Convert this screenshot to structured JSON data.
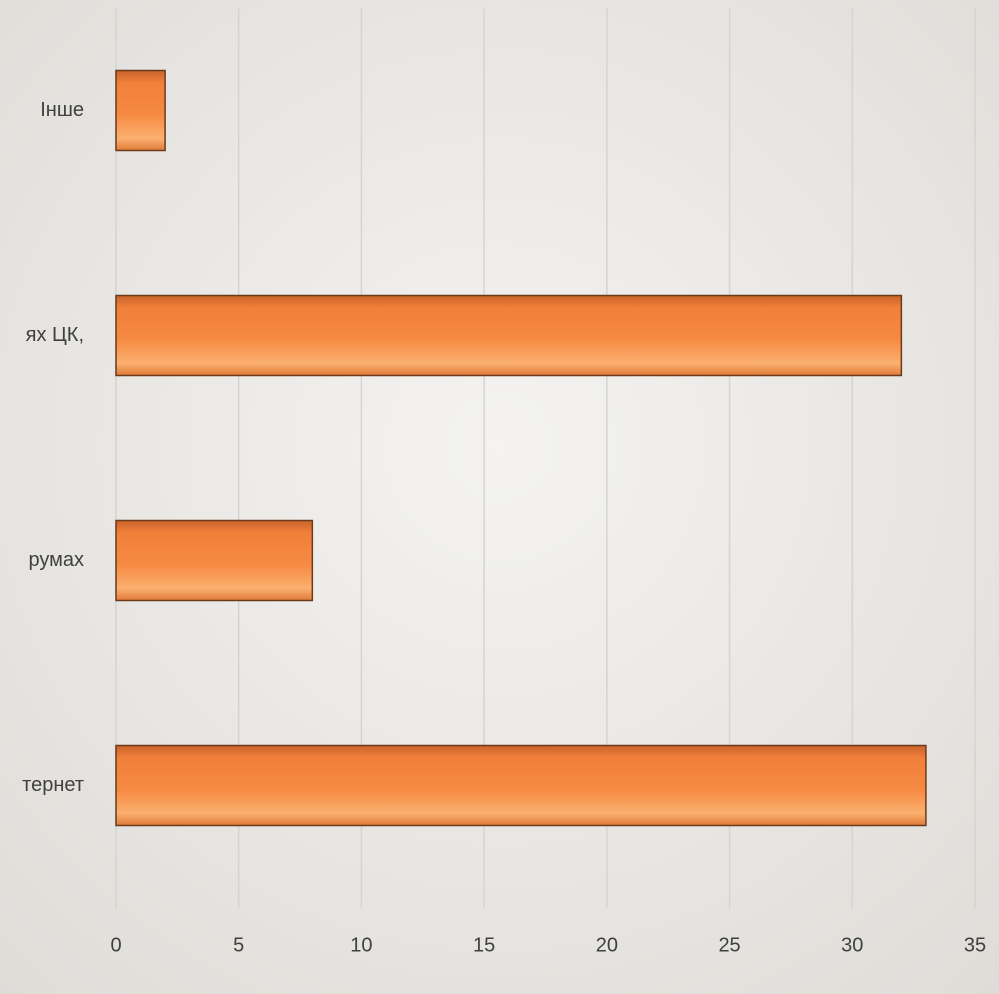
{
  "chart_data": {
    "type": "barh",
    "categories": [
      "Інше",
      "ях ЦК,",
      "румах",
      "тернет"
    ],
    "values": [
      2,
      32,
      8,
      33
    ],
    "color": "#f28a3c",
    "xlim": [
      0,
      35
    ],
    "xticks": [
      0,
      5,
      10,
      15,
      20,
      25,
      30,
      35
    ],
    "grid": true
  }
}
